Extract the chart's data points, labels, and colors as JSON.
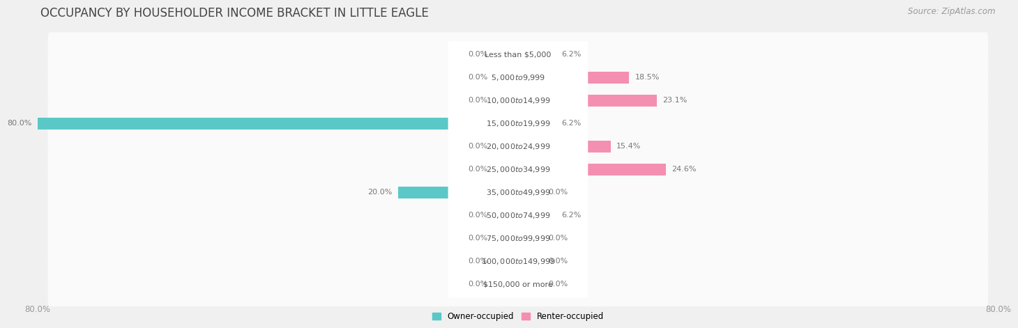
{
  "title": "OCCUPANCY BY HOUSEHOLDER INCOME BRACKET IN LITTLE EAGLE",
  "source": "Source: ZipAtlas.com",
  "categories": [
    "Less than $5,000",
    "$5,000 to $9,999",
    "$10,000 to $14,999",
    "$15,000 to $19,999",
    "$20,000 to $24,999",
    "$25,000 to $34,999",
    "$35,000 to $49,999",
    "$50,000 to $74,999",
    "$75,000 to $99,999",
    "$100,000 to $149,999",
    "$150,000 or more"
  ],
  "owner_values": [
    0.0,
    0.0,
    0.0,
    80.0,
    0.0,
    0.0,
    20.0,
    0.0,
    0.0,
    0.0,
    0.0
  ],
  "renter_values": [
    6.2,
    18.5,
    23.1,
    6.2,
    15.4,
    24.6,
    0.0,
    6.2,
    0.0,
    0.0,
    0.0
  ],
  "owner_color": "#5bc8c8",
  "renter_color": "#f48fb1",
  "owner_color_stub": "#a8dede",
  "renter_color_stub": "#f9c4d8",
  "bar_height": 0.52,
  "xlim": [
    -80.0,
    80.0
  ],
  "bg_color": "#f0f0f0",
  "row_bg_color": "#fafafa",
  "pill_color": "#ffffff",
  "title_fontsize": 12,
  "source_fontsize": 8.5,
  "cat_fontsize": 8.0,
  "val_fontsize": 8.0,
  "tick_fontsize": 8.5,
  "legend_fontsize": 8.5,
  "val_color": "#777777",
  "title_color": "#444444"
}
